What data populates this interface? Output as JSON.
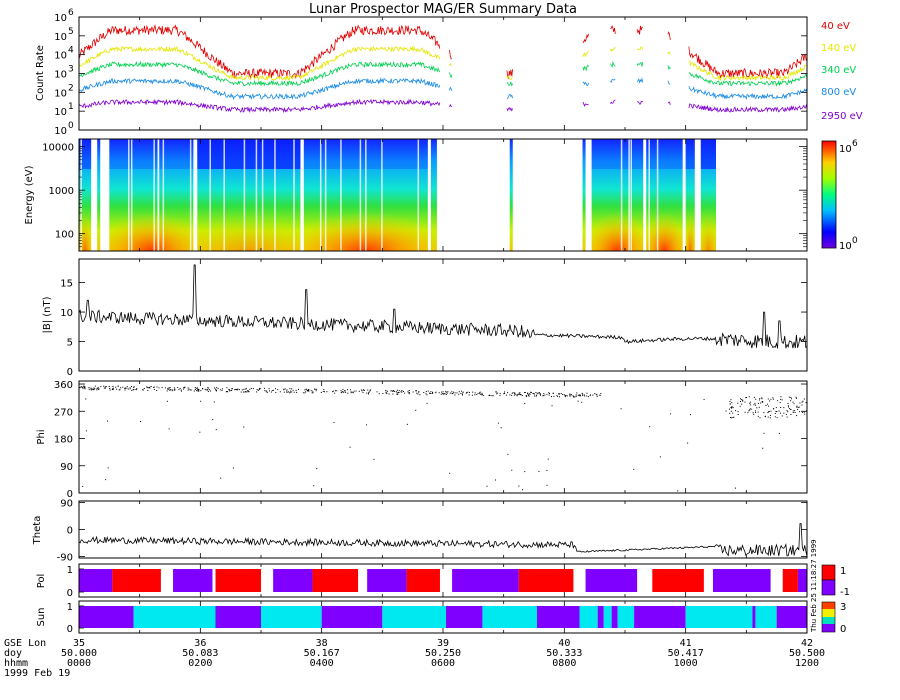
{
  "title": "Lunar Prospector MAG/ER Summary Data",
  "date_label": "1999 Feb 19",
  "generated_stamp": "Thu Feb 25 11:18:27 1999",
  "colors": {
    "ch40": "#e00000",
    "ch140": "#e6e600",
    "ch340": "#00d050",
    "ch800": "#1a8ce6",
    "ch2950": "#8000d0",
    "pol_pos": "#ff0000",
    "pol_neg": "#8000ff",
    "sun_lit": "#00e8f0",
    "sun_dark": "#8000ff"
  },
  "chart_data": [
    {
      "id": "count_rate",
      "type": "line",
      "ylabel": "Count Rate",
      "yscale": "log",
      "ylim": [
        1,
        1000000
      ],
      "ytick_values": [
        1,
        10,
        100,
        1000,
        10000,
        100000,
        1000000
      ],
      "ytick_exponents": [
        "0",
        "1",
        "2",
        "3",
        "4",
        "5",
        "6"
      ],
      "xlim": [
        0,
        12
      ],
      "gaps": [
        [
          5.95,
          6.1
        ],
        [
          6.15,
          7.05
        ],
        [
          7.15,
          8.3
        ],
        [
          8.4,
          8.75
        ],
        [
          8.85,
          9.2
        ],
        [
          9.3,
          9.7
        ],
        [
          9.75,
          10.05
        ]
      ],
      "series": [
        {
          "name": "40 eV",
          "color_key": "ch40",
          "low": 1000,
          "high": 200000
        },
        {
          "name": "140 eV",
          "color_key": "ch140",
          "low": 600,
          "high": 20000
        },
        {
          "name": "340 eV",
          "color_key": "ch340",
          "low": 300,
          "high": 3000
        },
        {
          "name": "800 eV",
          "color_key": "ch800",
          "low": 60,
          "high": 400
        },
        {
          "name": "2950 eV",
          "color_key": "ch2950",
          "low": 12,
          "high": 30
        }
      ]
    },
    {
      "id": "energy_spectrogram",
      "type": "heatmap",
      "ylabel": "Energy (eV)",
      "yscale": "log",
      "ylim": [
        40,
        15000
      ],
      "ytick_values": [
        100,
        1000,
        10000
      ],
      "ytick_labels": [
        "100",
        "1000",
        "10000"
      ],
      "colorbar": {
        "min_exponent": "0",
        "max_exponent": "6",
        "base": "10"
      },
      "data_segments": [
        [
          0.0,
          0.2
        ],
        [
          0.3,
          0.35
        ],
        [
          0.5,
          1.9
        ],
        [
          1.95,
          3.65
        ],
        [
          3.7,
          5.75
        ],
        [
          5.8,
          5.9
        ],
        [
          7.1,
          7.15
        ],
        [
          8.3,
          8.35
        ],
        [
          8.45,
          9.3
        ],
        [
          9.35,
          9.95
        ],
        [
          10.0,
          10.15
        ],
        [
          10.25,
          10.5
        ]
      ],
      "xlim": [
        0,
        12
      ]
    },
    {
      "id": "field_magnitude",
      "type": "line",
      "ylabel": "|B| (nT)",
      "ylim": [
        0,
        19
      ],
      "ytick_values": [
        0,
        5,
        10,
        15
      ],
      "ytick_labels": [
        "0",
        "5",
        "10",
        "15"
      ],
      "xlim": [
        0,
        12
      ],
      "spikes": [
        [
          0.15,
          12
        ],
        [
          1.9,
          18
        ],
        [
          2.05,
          8
        ],
        [
          3.75,
          13.8
        ],
        [
          5.2,
          10.5
        ],
        [
          11.3,
          10
        ],
        [
          11.55,
          8.5
        ]
      ]
    },
    {
      "id": "phi",
      "type": "scatter",
      "ylabel": "Phi",
      "ylim": [
        0,
        370
      ],
      "ytick_values": [
        0,
        90,
        180,
        270,
        360
      ],
      "ytick_labels": [
        "0",
        "90",
        "180",
        "270",
        "360"
      ],
      "xlim": [
        0,
        12
      ]
    },
    {
      "id": "theta",
      "type": "line",
      "ylabel": "Theta",
      "ylim": [
        -95,
        95
      ],
      "ytick_values": [
        -90,
        0,
        90
      ],
      "ytick_labels": [
        "-90",
        "0",
        "90"
      ],
      "xlim": [
        0,
        12
      ]
    },
    {
      "id": "polarity",
      "type": "table",
      "ylabel": "Pol",
      "ytick_labels": [
        "0",
        "1"
      ],
      "legend_labels": [
        "1",
        "-1"
      ],
      "xlim": [
        0,
        12
      ],
      "segments": [
        [
          0.0,
          0.55,
          "neg"
        ],
        [
          0.55,
          1.35,
          "pos"
        ],
        [
          1.35,
          1.55,
          "none"
        ],
        [
          1.55,
          2.2,
          "neg"
        ],
        [
          2.2,
          2.25,
          "none"
        ],
        [
          2.25,
          3.0,
          "pos"
        ],
        [
          3.0,
          3.2,
          "none"
        ],
        [
          3.2,
          3.85,
          "neg"
        ],
        [
          3.85,
          4.6,
          "pos"
        ],
        [
          4.6,
          4.75,
          "none"
        ],
        [
          4.75,
          5.4,
          "neg"
        ],
        [
          5.4,
          5.95,
          "pos"
        ],
        [
          5.95,
          6.15,
          "none"
        ],
        [
          6.15,
          7.25,
          "neg"
        ],
        [
          7.25,
          8.15,
          "pos"
        ],
        [
          8.15,
          8.35,
          "none"
        ],
        [
          8.35,
          9.2,
          "neg"
        ],
        [
          9.2,
          9.45,
          "none"
        ],
        [
          9.45,
          10.3,
          "pos"
        ],
        [
          10.3,
          10.45,
          "none"
        ],
        [
          10.45,
          11.4,
          "neg"
        ],
        [
          11.4,
          11.6,
          "none"
        ],
        [
          11.6,
          11.85,
          "pos"
        ],
        [
          11.85,
          12.0,
          "neg"
        ]
      ]
    },
    {
      "id": "sunlight",
      "type": "table",
      "ylabel": "Sun",
      "ytick_labels": [
        "0",
        "1"
      ],
      "legend_labels": [
        "3",
        "0"
      ],
      "xlim": [
        0,
        12
      ],
      "segments": [
        [
          0.0,
          0.9,
          "dark"
        ],
        [
          0.9,
          2.25,
          "lit"
        ],
        [
          2.25,
          3.0,
          "dark"
        ],
        [
          3.0,
          4.0,
          "lit"
        ],
        [
          4.0,
          5.0,
          "dark"
        ],
        [
          5.0,
          6.05,
          "lit"
        ],
        [
          6.05,
          6.65,
          "dark"
        ],
        [
          6.65,
          7.55,
          "lit"
        ],
        [
          7.55,
          8.25,
          "dark"
        ],
        [
          8.25,
          8.55,
          "lit"
        ],
        [
          8.55,
          8.65,
          "dark"
        ],
        [
          8.65,
          8.78,
          "lit"
        ],
        [
          8.78,
          8.88,
          "dark"
        ],
        [
          8.88,
          9.15,
          "lit"
        ],
        [
          9.15,
          10.0,
          "dark"
        ],
        [
          10.0,
          11.1,
          "lit"
        ],
        [
          11.1,
          11.15,
          "dark"
        ],
        [
          11.15,
          11.5,
          "lit"
        ],
        [
          11.5,
          12.0,
          "dark"
        ]
      ]
    }
  ],
  "x_axis": {
    "row_labels": [
      "GSE Lon",
      "doy",
      "hhmm"
    ],
    "lon": [
      "35",
      "36",
      "38",
      "39",
      "40",
      "41",
      "42"
    ],
    "doy": [
      "50.000",
      "50.083",
      "50.167",
      "50.250",
      "50.333",
      "50.417",
      "50.500"
    ],
    "hhmm": [
      "0000",
      "0200",
      "0400",
      "0600",
      "0800",
      "1000",
      "1200"
    ]
  }
}
